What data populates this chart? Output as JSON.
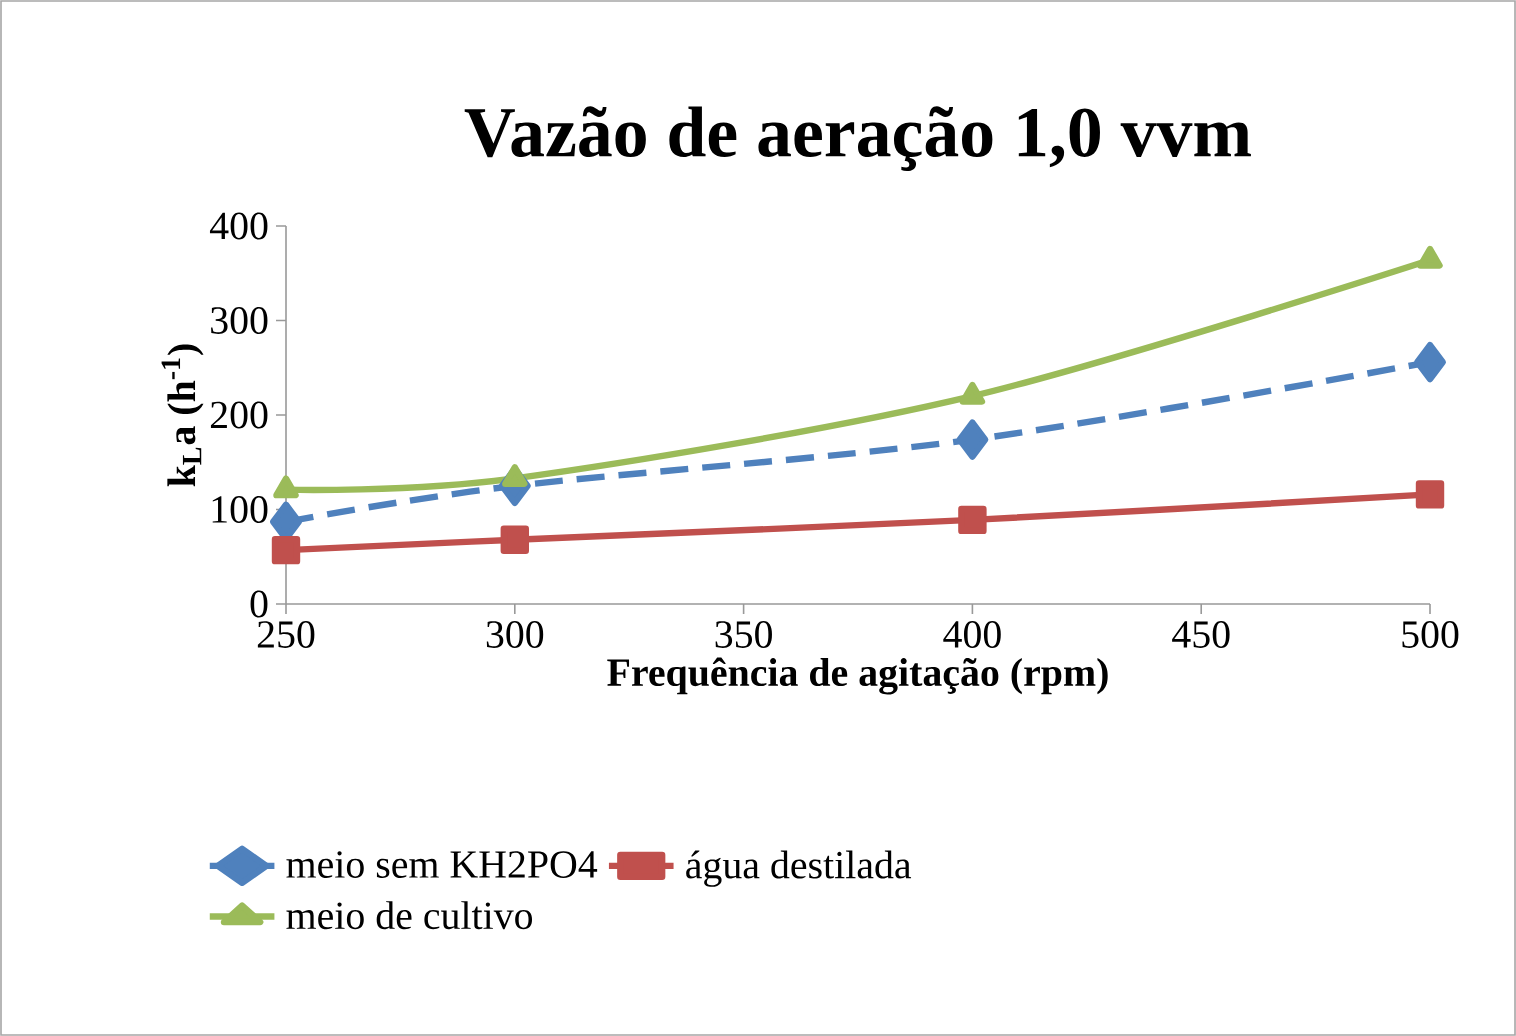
{
  "chart_data": {
    "type": "line",
    "title": "Vazão de aeração 1,0 vvm",
    "xlabel": "Frequência de agitação (rpm)",
    "ylabel": "k$_{L}$a (h$^{-1}$)",
    "x": [
      250,
      300,
      400,
      500
    ],
    "series": [
      {
        "name": "meio sem KH2PO4",
        "color": "#4f81bd",
        "marker": "diamond",
        "line_style": "dashed",
        "values": [
          87,
          125,
          174,
          256
        ]
      },
      {
        "name": "água destilada",
        "color": "#c0504d",
        "marker": "square",
        "line_style": "solid",
        "values": [
          57,
          68,
          89,
          116
        ]
      },
      {
        "name": "meio de cultivo",
        "color": "#9bbb59",
        "marker": "triangle",
        "line_style": "solid",
        "values": [
          121,
          133,
          220,
          364
        ]
      }
    ],
    "xlim": [
      250,
      500
    ],
    "xticks": [
      250,
      300,
      350,
      400,
      450,
      500
    ],
    "ylim": [
      0,
      400
    ],
    "yticks": [
      0,
      100,
      200,
      300,
      400
    ],
    "legend": "bottom"
  }
}
